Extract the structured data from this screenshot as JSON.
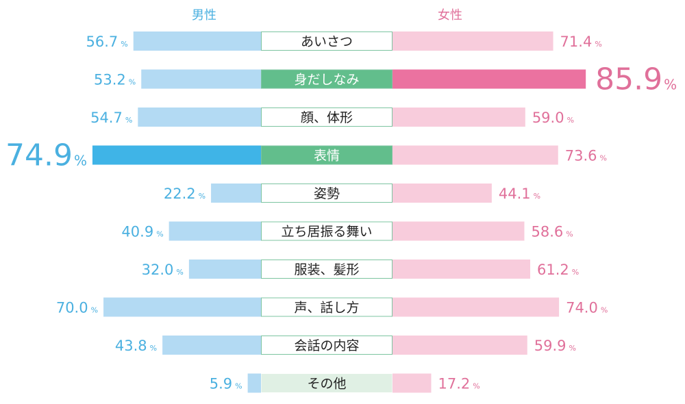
{
  "chart_data": {
    "type": "bar",
    "orientation": "horizontal-butterfly",
    "categories": [
      "あいさつ",
      "身だしなみ",
      "顔、体形",
      "表情",
      "姿勢",
      "立ち居振る舞い",
      "服装、髪形",
      "声、話し方",
      "会話の内容",
      "その他"
    ],
    "series": [
      {
        "name": "男性",
        "side": "left",
        "values": [
          56.7,
          53.2,
          54.7,
          74.9,
          22.2,
          40.9,
          32.0,
          70.0,
          43.8,
          5.9
        ],
        "highlight_index": 3
      },
      {
        "name": "女性",
        "side": "right",
        "values": [
          71.4,
          85.9,
          59.0,
          73.6,
          44.1,
          58.6,
          61.2,
          74.0,
          59.9,
          17.2
        ],
        "highlight_index": 1
      }
    ],
    "unit": "%",
    "xlim": [
      0,
      100
    ],
    "grid": false,
    "highlighted_categories": [
      1,
      3
    ],
    "colors": {
      "male_bar": "#b3daf3",
      "male_highlight": "#3fb4e7",
      "male_text": "#4ab0e0",
      "female_bar": "#f8ccdc",
      "female_highlight": "#eb72a0",
      "female_text": "#e0709a",
      "label_highlight": "#62be8c",
      "label_border": "#7cc4a0",
      "label_other": "#e0f0e4"
    }
  }
}
